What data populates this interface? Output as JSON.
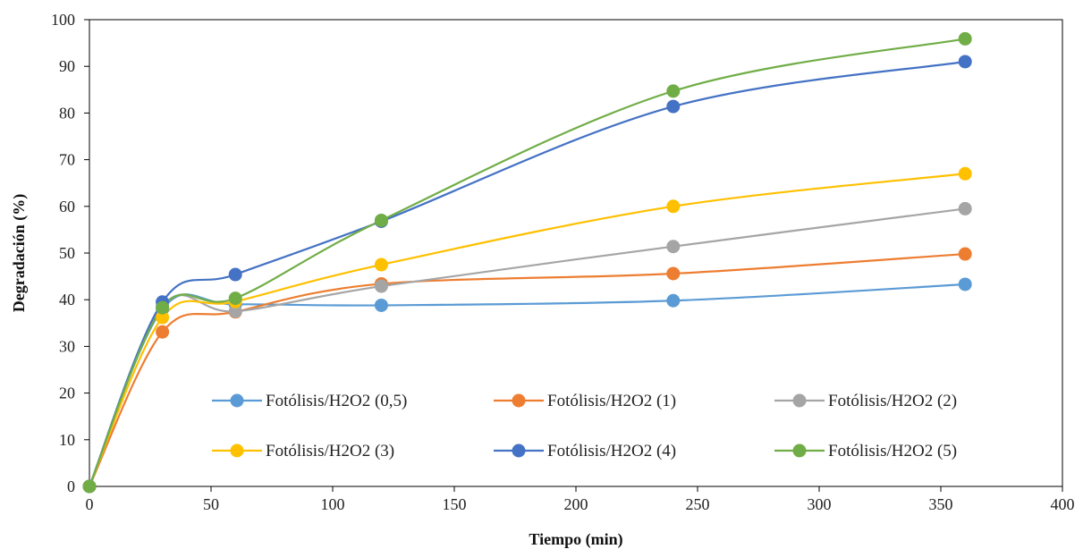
{
  "chart_data": {
    "type": "line",
    "title": "",
    "xlabel": "Tiempo (min)",
    "ylabel": "Degradación (%)",
    "xlim": [
      0,
      400
    ],
    "ylim": [
      0,
      100
    ],
    "xticks": [
      "0",
      "50",
      "100",
      "150",
      "200",
      "250",
      "300",
      "350",
      "400"
    ],
    "yticks": [
      "0",
      "10",
      "20",
      "30",
      "40",
      "50",
      "60",
      "70",
      "80",
      "90",
      "100"
    ],
    "grid": false,
    "legend_position": "bottom-inside",
    "smooth": true,
    "x": [
      0,
      30,
      60,
      120,
      240,
      360
    ],
    "series": [
      {
        "name": "Fotólisis/H2O2 (0,5)",
        "color": "#5B9BD5",
        "values": [
          0,
          38.0,
          39.0,
          38.8,
          39.8,
          43.3
        ]
      },
      {
        "name": "Fotólisis/H2O2 (1)",
        "color": "#ED7D31",
        "values": [
          0,
          33.1,
          37.4,
          43.4,
          45.6,
          49.8
        ]
      },
      {
        "name": "Fotólisis/H2O2 (2)",
        "color": "#A5A5A5",
        "values": [
          0,
          38.6,
          37.5,
          42.9,
          51.4,
          59.5
        ]
      },
      {
        "name": "Fotólisis/H2O2 (3)",
        "color": "#FFC000",
        "values": [
          0,
          36.2,
          39.6,
          47.5,
          60.0,
          67.0
        ]
      },
      {
        "name": "Fotólisis/H2O2 (4)",
        "color": "#4472C4",
        "values": [
          0,
          39.5,
          45.4,
          56.8,
          81.4,
          91.0
        ]
      },
      {
        "name": "Fotólisis/H2O2 (5)",
        "color": "#70AD47",
        "values": [
          0,
          38.3,
          40.3,
          57.0,
          84.7,
          95.9
        ]
      }
    ]
  }
}
